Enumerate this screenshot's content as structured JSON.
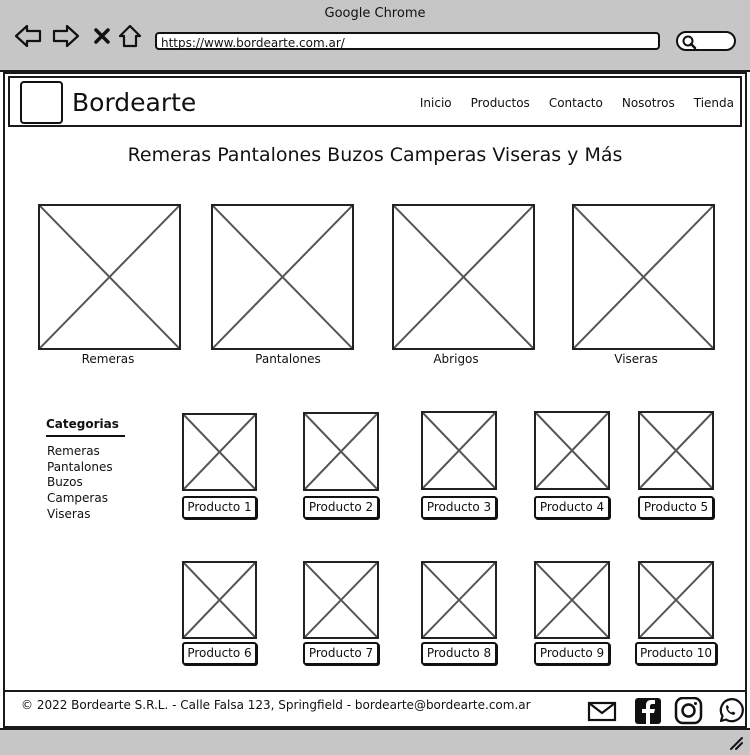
{
  "browser": {
    "title": "Google Chrome",
    "url": "https://www.bordearte.com.ar/"
  },
  "header": {
    "brand": "Bordearte",
    "nav": [
      "Inicio",
      "Productos",
      "Contacto",
      "Nosotros",
      "Tienda"
    ]
  },
  "headline": "Remeras Pantalones Buzos Camperas Viseras y Más",
  "categories_featured": [
    "Remeras",
    "Pantalones",
    "Abrigos",
    "Viseras"
  ],
  "sidebar": {
    "title": "Categorias",
    "items": [
      "Remeras",
      "Pantalones",
      "Buzos",
      "Camperas",
      "Viseras"
    ]
  },
  "products": [
    "Producto 1",
    "Producto 2",
    "Producto 3",
    "Producto 4",
    "Producto 5",
    "Producto 6",
    "Producto 7",
    "Producto 8",
    "Producto 9",
    "Producto 10"
  ],
  "footer": {
    "text": "© 2022 Bordearte S.R.L. - Calle Falsa 123, Springfield - bordearte@bordearte.com.ar"
  },
  "social_icons": [
    "mail-icon",
    "facebook-icon",
    "instagram-icon",
    "whatsapp-icon"
  ]
}
